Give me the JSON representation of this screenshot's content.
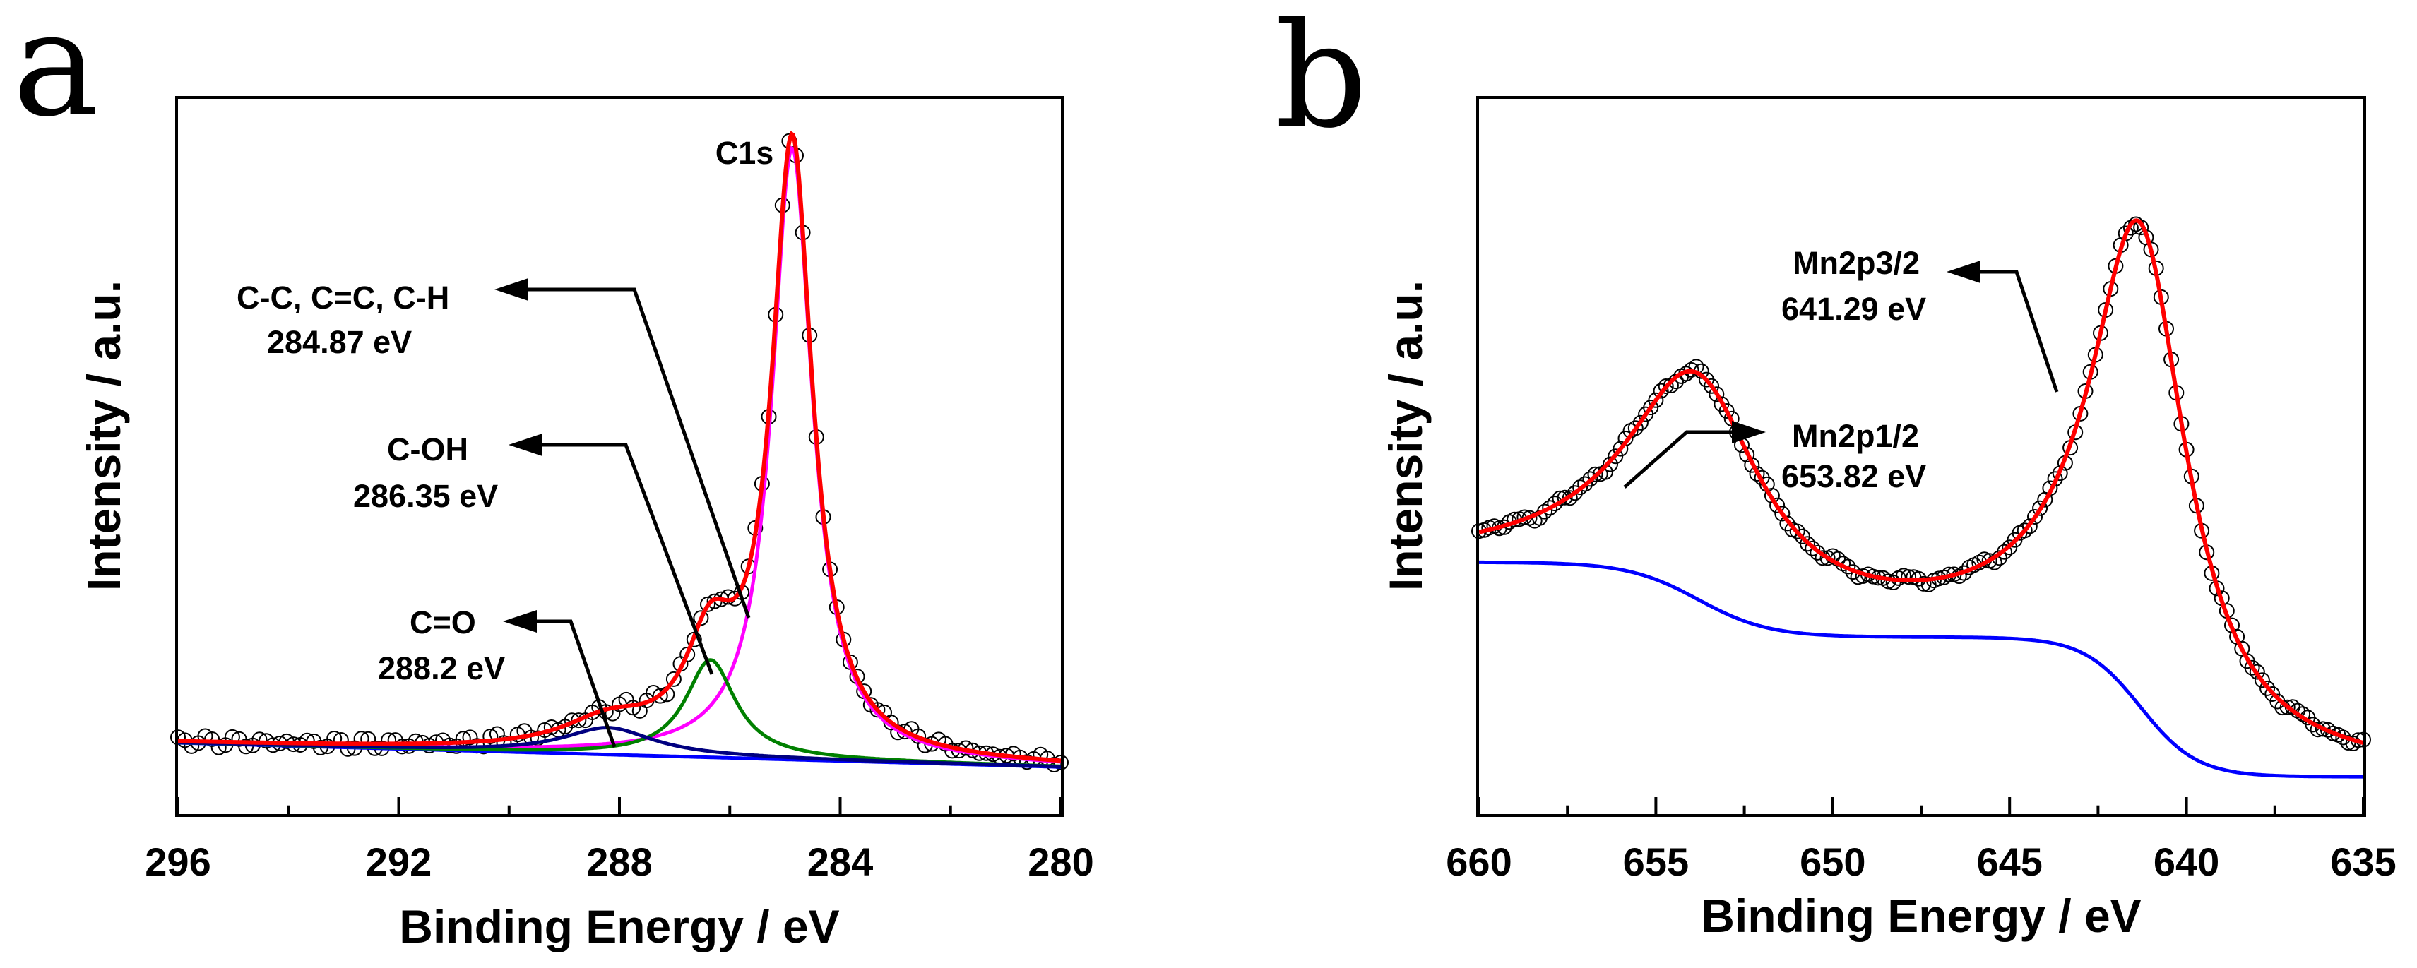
{
  "chart_data": [
    {
      "type": "line",
      "panel_label": "a",
      "title": "C1s",
      "xlabel": "Binding Energy / eV",
      "ylabel": "Intensity / a.u.",
      "xlim": [
        296,
        280
      ],
      "x_reversed": true,
      "x_ticks": [
        "296",
        "292",
        "288",
        "284",
        "280"
      ],
      "y_ticks_shown": false,
      "y_range_arbitrary": [
        0,
        100
      ],
      "background": {
        "linear_from": [
          296,
          4.2
        ],
        "linear_to": [
          280,
          0.6
        ]
      },
      "peaks": [
        {
          "name": "C-C, C=C, C-H",
          "center": 284.87,
          "label_ev": "284.87 eV",
          "amplitude": 91,
          "fwhm": 0.9,
          "color": "#ff00ff"
        },
        {
          "name": "C-OH",
          "center": 286.35,
          "label_ev": "286.35 eV",
          "amplitude": 14.5,
          "fwhm": 1.1,
          "color": "#008000"
        },
        {
          "name": "C=O",
          "center": 288.2,
          "label_ev": "288.2 eV",
          "amplitude": 4.0,
          "fwhm": 2.0,
          "color": "#000080"
        }
      ],
      "series": [
        {
          "name": "Experimental data",
          "marker": "open-circle",
          "color": "#000000"
        },
        {
          "name": "Envelope fit",
          "color": "#ff0000"
        },
        {
          "name": "Background",
          "color": "#0000ff"
        }
      ],
      "annotations": [
        {
          "text": "C-C, C=C, C-H",
          "sub": "284.87 eV",
          "target_x": 285.7,
          "target_y": 23
        },
        {
          "text": "C-OH",
          "sub": "286.35 eV",
          "target_x": 286.4,
          "target_y": 15
        },
        {
          "text": "C=O",
          "sub": "288.2 eV",
          "target_x": 288.0,
          "target_y": 4
        }
      ]
    },
    {
      "type": "line",
      "panel_label": "b",
      "title": "",
      "xlabel": "Binding Energy / eV",
      "ylabel": "Intensity / a.u.",
      "xlim": [
        660,
        635
      ],
      "x_reversed": true,
      "x_ticks": [
        "660",
        "655",
        "650",
        "645",
        "640",
        "635"
      ],
      "y_ticks_shown": false,
      "y_range_arbitrary": [
        0,
        100
      ],
      "background": {
        "shirley_high": 32,
        "shirley_low": 0.5,
        "mid_level": 21,
        "step1_center": 653.8,
        "step2_center": 641.3
      },
      "peaks": [
        {
          "name": "Mn2p3/2",
          "center": 641.29,
          "label_ev": "641.29 eV",
          "amplitude": 70,
          "fwhm": 3.3,
          "color": "#ff0000"
        },
        {
          "name": "Mn2p1/2",
          "center": 653.82,
          "label_ev": "653.82 eV",
          "amplitude": 32,
          "fwhm": 4.6,
          "color": "#ff0000"
        }
      ],
      "series": [
        {
          "name": "Experimental data",
          "marker": "open-circle",
          "color": "#000000"
        },
        {
          "name": "Envelope fit",
          "color": "#ff0000"
        },
        {
          "name": "Shirley background",
          "color": "#0000ff"
        }
      ],
      "annotations": [
        {
          "text": "Mn2p3/2",
          "sub": "641.29 eV",
          "target_x": 643.5,
          "target_y": 55
        },
        {
          "text": "Mn2p1/2",
          "sub": "653.82 eV",
          "target_x": 654.9,
          "target_y": 42
        }
      ]
    }
  ]
}
